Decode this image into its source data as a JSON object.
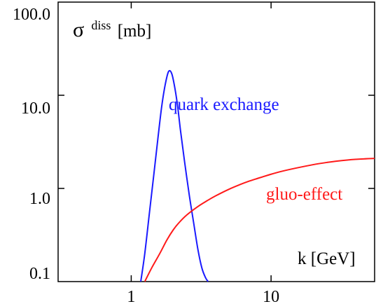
{
  "chart_data": {
    "type": "line",
    "title": "",
    "ylabel": {
      "symbol": "σ",
      "superscript": "diss",
      "unit": "[mb]"
    },
    "xlabel": "k [GeV]",
    "xscale": "log",
    "yscale": "log",
    "xlim": [
      0.3,
      55
    ],
    "ylim": [
      0.1,
      100
    ],
    "xticks": [
      {
        "value": 1,
        "label": "1"
      },
      {
        "value": 10,
        "label": "10"
      }
    ],
    "yticks": [
      {
        "value": 0.1,
        "label": "0.1"
      },
      {
        "value": 1,
        "label": "1.0"
      },
      {
        "value": 10,
        "label": "10.0"
      },
      {
        "value": 100,
        "label": "100.0"
      }
    ],
    "grid": false,
    "series": [
      {
        "name": "quark exchange",
        "color": "#1a1aff",
        "x": [
          1.17,
          1.25,
          1.35,
          1.45,
          1.55,
          1.65,
          1.75,
          1.85,
          1.95,
          2.05,
          2.15,
          2.25,
          2.4,
          2.6,
          2.8,
          3.0,
          3.2,
          3.4,
          3.55
        ],
        "y": [
          0.1,
          0.2,
          0.55,
          1.4,
          3.4,
          7.5,
          13.0,
          18.0,
          17.0,
          12.0,
          7.5,
          4.2,
          2.0,
          0.85,
          0.42,
          0.22,
          0.14,
          0.11,
          0.1
        ]
      },
      {
        "name": "gluo-effect",
        "color": "#ff1a1a",
        "x": [
          1.25,
          1.4,
          1.6,
          1.8,
          2.0,
          2.2,
          2.5,
          3.0,
          3.5,
          4.0,
          5.0,
          6.0,
          7.0,
          8.0,
          10.0,
          12.0,
          15.0,
          20.0,
          25.0,
          30.0,
          40.0,
          55.0
        ],
        "y": [
          0.1,
          0.14,
          0.2,
          0.28,
          0.36,
          0.43,
          0.52,
          0.64,
          0.74,
          0.83,
          0.98,
          1.1,
          1.2,
          1.28,
          1.42,
          1.53,
          1.65,
          1.8,
          1.9,
          1.97,
          2.05,
          2.1
        ]
      }
    ]
  }
}
